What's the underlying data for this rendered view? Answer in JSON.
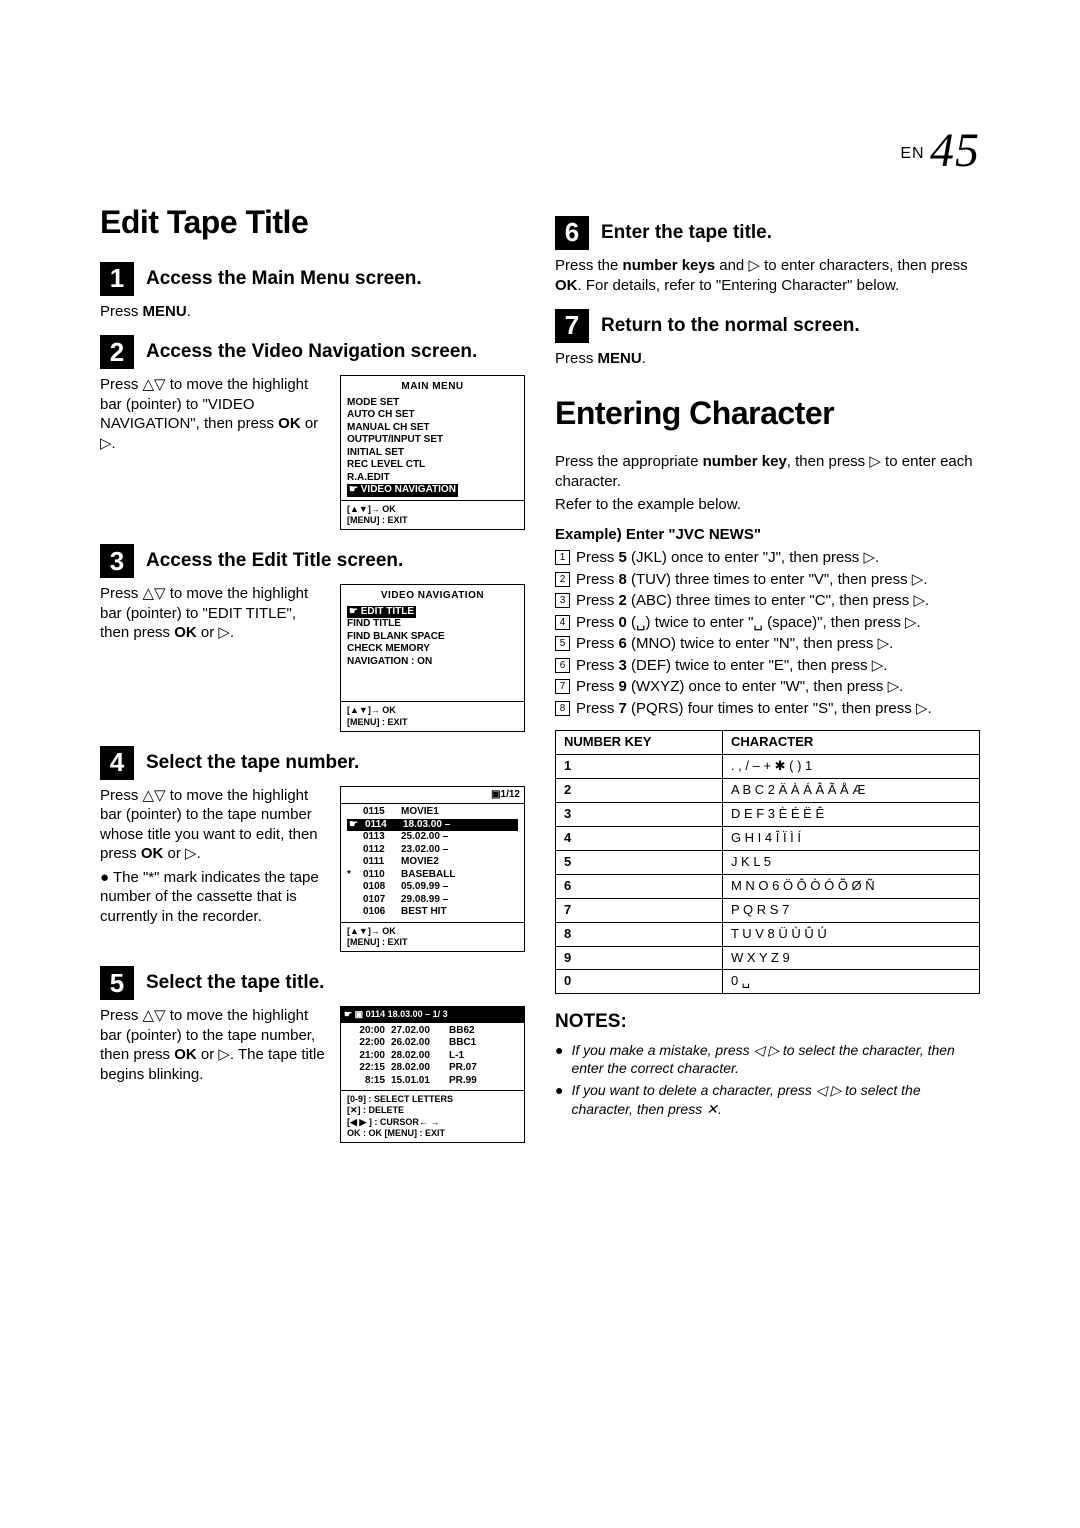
{
  "pageLabel": "EN",
  "pageNumber": "45",
  "left": {
    "h1": "Edit Tape Title",
    "steps": [
      {
        "num": "1",
        "title": "Access the Main Menu screen.",
        "body": [
          {
            "t": "p",
            "html": "Press <b>MENU</b>."
          }
        ]
      },
      {
        "num": "2",
        "title": "Access the Video Navigation screen.",
        "flex": true,
        "text": [
          {
            "t": "p",
            "html": "Press △▽ to move the highlight bar (pointer) to \"VIDEO NAVIGATION\", then press <b>OK</b> or ▷."
          }
        ],
        "screen": {
          "title": "MAIN MENU",
          "lines": [
            "MODE SET",
            "AUTO CH SET",
            "MANUAL CH SET",
            "OUTPUT/INPUT SET",
            "INITIAL SET",
            "REC LEVEL CTL",
            "R.A.EDIT"
          ],
          "hl": "☛ VIDEO NAVIGATION",
          "footer": "[▲▼]→ OK\n[MENU] : EXIT"
        }
      },
      {
        "num": "3",
        "title": "Access the Edit Title screen.",
        "flex": true,
        "text": [
          {
            "t": "p",
            "html": "Press △▽ to move the highlight bar (pointer) to \"EDIT TITLE\", then press <b>OK</b> or ▷."
          }
        ],
        "screen": {
          "title": "VIDEO NAVIGATION",
          "hl": "☛ EDIT TITLE",
          "lines2": [
            "FIND TITLE",
            "FIND BLANK SPACE",
            "CHECK MEMORY",
            "NAVIGATION              : ON"
          ],
          "tall": true,
          "footer": "[▲▼]→ OK\n[MENU] : EXIT"
        }
      },
      {
        "num": "4",
        "title": "Select the tape number.",
        "flex": true,
        "text": [
          {
            "t": "p",
            "html": "Press △▽ to move the highlight bar (pointer) to the tape number whose title you want to edit, then press <b>OK</b> or ▷."
          },
          {
            "t": "bullet",
            "html": "The \"*\" mark indicates the tape number of the cassette that is currently in the recorder."
          }
        ],
        "screen": {
          "cornerRight": "1/12",
          "rows": [
            [
              "",
              "0115",
              "MOVIE1"
            ],
            [
              "☛",
              "0114",
              "18.03.00 –",
              true
            ],
            [
              "",
              "0113",
              "25.02.00 –"
            ],
            [
              "",
              "0112",
              "23.02.00 –"
            ],
            [
              "",
              "0111",
              "MOVIE2"
            ],
            [
              "*",
              "0110",
              "BASEBALL"
            ],
            [
              "",
              "0108",
              "05.09.99 –"
            ],
            [
              "",
              "0107",
              "29.08.99 –"
            ],
            [
              "",
              "0106",
              "BEST HIT"
            ]
          ],
          "footer": "[▲▼]→ OK\n[MENU] : EXIT"
        }
      },
      {
        "num": "5",
        "title": "Select the tape title.",
        "flex": true,
        "text": [
          {
            "t": "p",
            "html": "Press △▽ to move the highlight bar (pointer) to the tape number, then press <b>OK</b> or ▷. The tape title begins blinking."
          }
        ],
        "screen": {
          "topbar": "☛  ▣ 0114    18.03.00 –     1/ 3",
          "rows2": [
            [
              "20:00",
              "27.02.00",
              "BB62"
            ],
            [
              "22:00",
              "26.02.00",
              "BBC1"
            ],
            [
              "21:00",
              "28.02.00",
              "L-1"
            ],
            [
              "22:15",
              "28.02.00",
              "PR.07"
            ],
            [
              "8:15",
              "15.01.01",
              "PR.99"
            ]
          ],
          "footer2": "[0-9] : SELECT LETTERS\n[✕] : DELETE\n[◀ ▶ ] : CURSOR← →\nOK : OK    [MENU] : EXIT"
        }
      }
    ]
  },
  "right": {
    "steps": [
      {
        "num": "6",
        "title": "Enter the tape title.",
        "body": [
          {
            "t": "p",
            "html": "Press the <b>number keys</b> and ▷ to enter characters, then press <b>OK</b>. For details, refer to \"Entering Character\" below."
          }
        ]
      },
      {
        "num": "7",
        "title": "Return to the normal screen.",
        "body": [
          {
            "t": "p",
            "html": "Press <b>MENU</b>."
          }
        ]
      }
    ],
    "h1b": "Entering Character",
    "intro": [
      "Press the appropriate <b>number key</b>, then press ▷ to enter each character.",
      "Refer to the example below."
    ],
    "exampleTitle": "Example) Enter \"JVC NEWS\"",
    "exampleSteps": [
      "Press <b>5</b> (JKL) once to enter \"J\", then press ▷.",
      "Press <b>8</b> (TUV) three times to enter \"V\", then press ▷.",
      "Press <b>2</b> (ABC) three times to enter \"C\", then press ▷.",
      "Press <b>0</b> (␣) twice to enter \"␣ (space)\", then press ▷.",
      "Press <b>6</b> (MNO) twice to enter \"N\", then press ▷.",
      "Press <b>3</b> (DEF) twice to enter \"E\", then press ▷.",
      "Press <b>9</b> (WXYZ) once to enter \"W\", then press ▷.",
      "Press <b>7</b> (PQRS) four times to enter \"S\", then press ▷."
    ],
    "table": {
      "headers": [
        "NUMBER KEY",
        "CHARACTER"
      ],
      "rows": [
        [
          "1",
          ". , / – + ✱ ( ) 1"
        ],
        [
          "2",
          "A B C 2 Ä À Á Â Ã Å Æ"
        ],
        [
          "3",
          "D E F 3 È É Ë Ê"
        ],
        [
          "4",
          "G H I 4 Î Ï Ì Í"
        ],
        [
          "5",
          "J K L 5"
        ],
        [
          "6",
          "M N O 6 Ö Ô Ò Ó Õ Ø Ñ"
        ],
        [
          "7",
          "P Q R S 7"
        ],
        [
          "8",
          "T U V 8 Ü Ù Û Ú"
        ],
        [
          "9",
          "W X Y Z 9"
        ],
        [
          "0",
          "0 ␣"
        ]
      ]
    },
    "notesTitle": "NOTES:",
    "notes": [
      "If you make a mistake, press ◁ ▷ to select the character, then enter the correct character.",
      "If you want to delete a character, press ◁ ▷ to select the character, then press ✕."
    ]
  }
}
